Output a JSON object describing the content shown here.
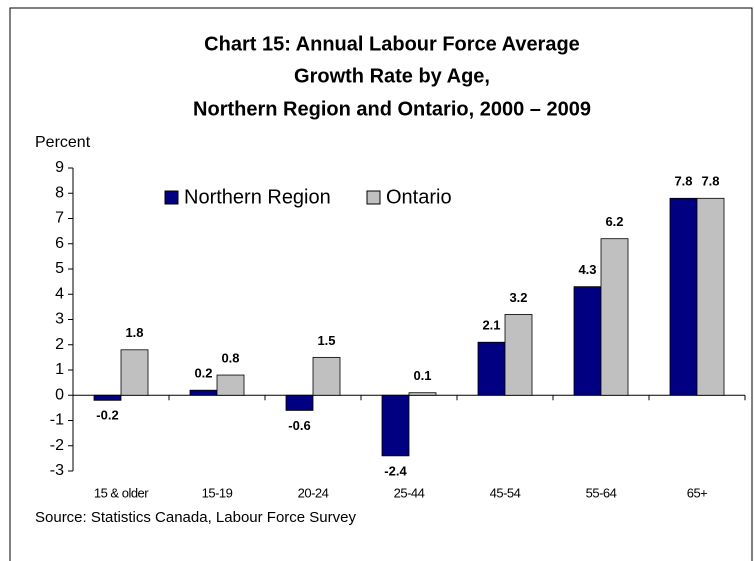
{
  "chart_data": {
    "type": "bar",
    "title_lines": [
      "Chart 15: Annual Labour Force Average",
      "Growth Rate by Age,",
      "Northern Region and Ontario, 2000 – 2009"
    ],
    "ylabel": "Percent",
    "categories": [
      "15 & older",
      "15-19",
      "20-24",
      "25-44",
      "45-54",
      "55-64",
      "65+"
    ],
    "series": [
      {
        "name": "Northern Region",
        "color": "#000080",
        "values": [
          -0.2,
          0.2,
          -0.6,
          -2.4,
          2.1,
          4.3,
          7.8
        ]
      },
      {
        "name": "Ontario",
        "color": "#c0c0c0",
        "values": [
          1.8,
          0.8,
          1.5,
          0.1,
          3.2,
          6.2,
          7.8
        ]
      }
    ],
    "ylim": [
      -3,
      9
    ],
    "yticks": [
      -3,
      -2,
      -1,
      0,
      1,
      2,
      3,
      4,
      5,
      6,
      7,
      8,
      9
    ],
    "source": "Source: Statistics Canada, Labour Force Survey"
  }
}
